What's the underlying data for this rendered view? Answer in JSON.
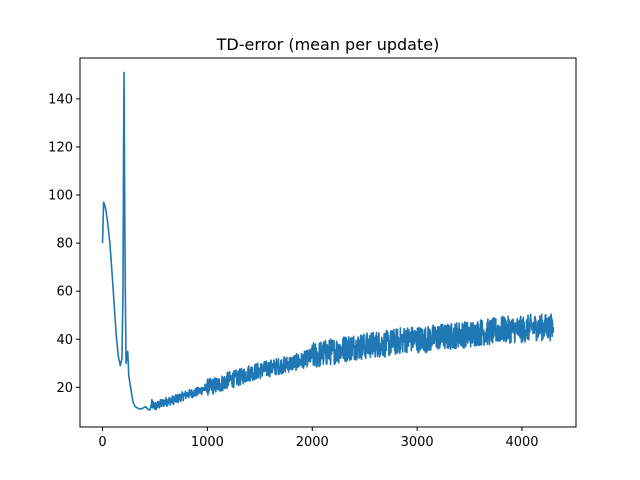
{
  "chart_data": {
    "type": "line",
    "title": "TD-error (mean per update)",
    "xlabel": "",
    "ylabel": "",
    "xlim": [
      -215,
      4515
    ],
    "ylim": [
      3.5,
      157
    ],
    "x_ticks": [
      0,
      1000,
      2000,
      3000,
      4000
    ],
    "y_ticks": [
      20,
      40,
      60,
      80,
      100,
      120,
      140
    ],
    "grid": false,
    "legend": "none",
    "series": [
      {
        "color": "#1f77b4",
        "x": [
          0,
          10,
          20,
          35,
          50,
          70,
          90,
          110,
          130,
          150,
          170,
          185,
          195,
          200,
          205,
          212,
          218,
          224,
          230,
          240,
          250,
          260,
          275,
          290,
          310,
          330,
          350,
          370,
          390,
          410,
          430,
          450,
          470,
          500,
          550,
          600,
          650,
          700,
          800,
          900,
          1000,
          1100,
          1200,
          1300,
          1400,
          1500,
          1600,
          1700,
          1800,
          1900,
          2000,
          2100,
          2200,
          2300,
          2400,
          2500,
          2600,
          2700,
          2800,
          2900,
          3000,
          3100,
          3200,
          3300,
          3400,
          3500,
          3600,
          3700,
          3800,
          3900,
          4000,
          4100,
          4200,
          4300
        ],
        "y": [
          80,
          97,
          96,
          93,
          88,
          80,
          68,
          55,
          42,
          33,
          29,
          32,
          60,
          115,
          151,
          90,
          55,
          30,
          32,
          35,
          25,
          22,
          18,
          14,
          12,
          11.5,
          11,
          11,
          11.5,
          12,
          11,
          10.5,
          13,
          12,
          13,
          14,
          14.5,
          15,
          17,
          18,
          20,
          21,
          23,
          24,
          26,
          27,
          28,
          29,
          30,
          31,
          33,
          34,
          35,
          36,
          37,
          37,
          38,
          38,
          39,
          40,
          40,
          40,
          41,
          41,
          42,
          42,
          43,
          43,
          44,
          44,
          44,
          45,
          45,
          45
        ]
      }
    ]
  }
}
